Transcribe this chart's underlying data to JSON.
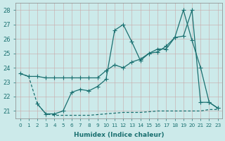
{
  "xlabel": "Humidex (Indice chaleur)",
  "xlim": [
    -0.5,
    23.5
  ],
  "ylim": [
    20.5,
    28.5
  ],
  "yticks": [
    21,
    22,
    23,
    24,
    25,
    26,
    27,
    28
  ],
  "xticks": [
    0,
    1,
    2,
    3,
    4,
    5,
    6,
    7,
    8,
    9,
    10,
    11,
    12,
    13,
    14,
    15,
    16,
    17,
    18,
    19,
    20,
    21,
    22,
    23
  ],
  "line_color": "#1a7070",
  "bg_color": "#cceaea",
  "grid_color": "#b0d8d8",
  "line1_x": [
    0,
    1,
    2,
    3,
    4,
    5,
    6,
    7,
    8,
    9,
    10,
    11,
    12,
    13,
    14,
    15,
    16,
    17,
    18,
    19,
    20,
    21,
    22,
    23
  ],
  "line1_y": [
    23.6,
    23.4,
    23.4,
    23.3,
    23.3,
    23.3,
    23.3,
    23.3,
    23.3,
    23.3,
    23.8,
    24.2,
    24.0,
    24.4,
    24.6,
    25.0,
    25.1,
    25.5,
    26.1,
    28.0,
    25.9,
    24.0,
    21.6,
    21.2
  ],
  "line2_x": [
    2,
    3,
    4,
    5,
    6,
    7,
    8,
    9,
    10,
    11,
    12,
    13,
    14,
    15,
    16,
    17,
    18,
    19,
    20,
    21,
    22,
    23
  ],
  "line2_y": [
    21.5,
    20.8,
    20.8,
    21.0,
    22.3,
    22.5,
    22.4,
    22.7,
    23.2,
    26.6,
    27.0,
    25.8,
    24.5,
    25.0,
    25.3,
    25.3,
    26.1,
    26.2,
    28.0,
    21.6,
    21.6,
    21.2
  ],
  "line3_x": [
    0,
    1,
    2,
    3,
    4,
    5,
    6,
    7,
    8,
    9,
    10,
    11,
    12,
    13,
    14,
    15,
    16,
    17,
    18,
    19,
    20,
    21,
    22,
    23
  ],
  "line3_y": [
    23.6,
    23.4,
    21.5,
    20.8,
    20.7,
    20.7,
    20.7,
    20.7,
    20.7,
    20.75,
    20.8,
    20.85,
    20.9,
    20.9,
    20.9,
    20.95,
    21.0,
    21.0,
    21.0,
    21.0,
    21.0,
    21.0,
    21.1,
    21.1
  ]
}
